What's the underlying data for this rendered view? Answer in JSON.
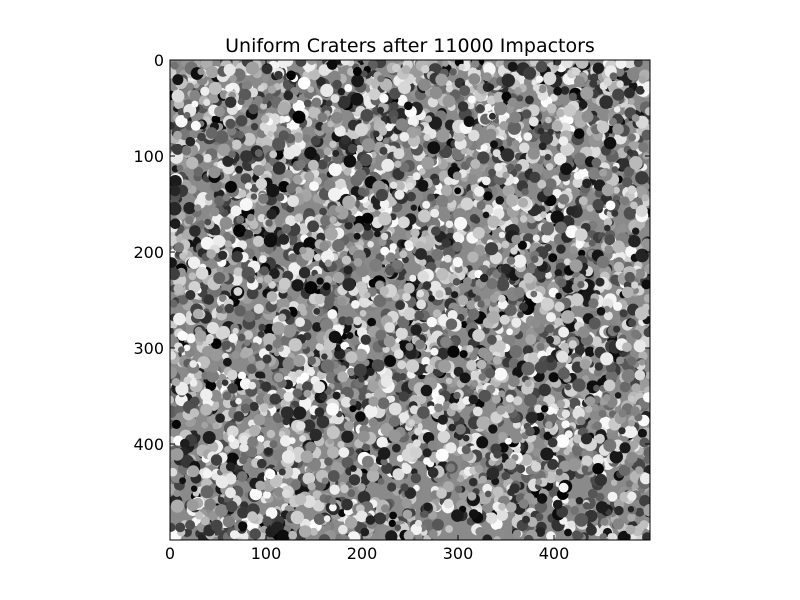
{
  "chart_data": {
    "type": "heatmap",
    "title": "Uniform Craters after 11000 Impactors",
    "xlabel": "",
    "ylabel": "",
    "xlim": [
      0,
      500
    ],
    "ylim": [
      500,
      0
    ],
    "x_ticks": [
      0,
      100,
      200,
      300,
      400
    ],
    "y_ticks": [
      0,
      100,
      200,
      300,
      400
    ],
    "colormap": "gray",
    "grid": false,
    "impactor_count": 11000
  }
}
